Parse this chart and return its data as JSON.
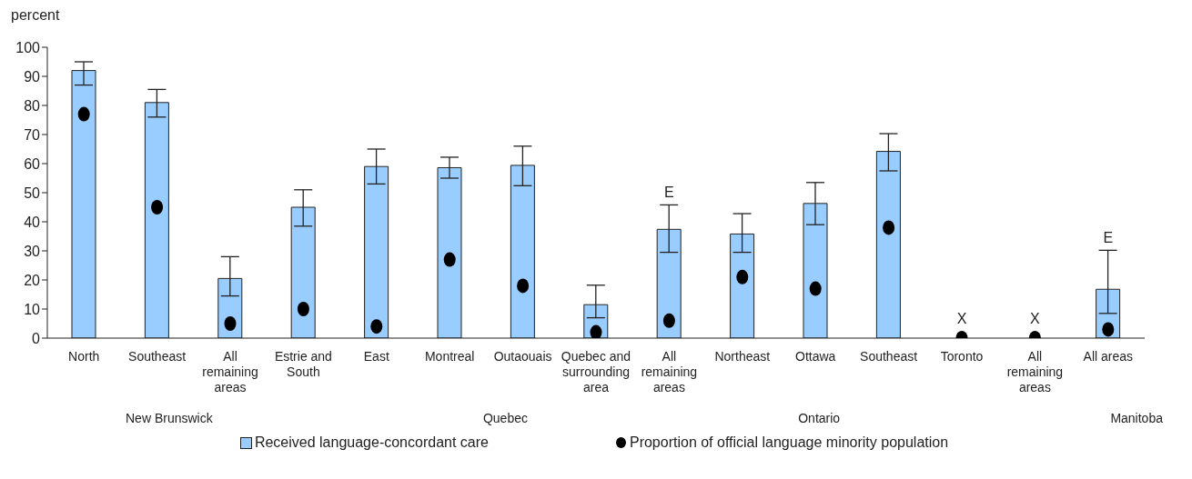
{
  "chart_data": {
    "type": "bar",
    "ylabel": "percent",
    "categories": [
      "North",
      "Southeast",
      "All remaining areas",
      "Estrie and South",
      "East",
      "Montreal",
      "Outaouais",
      "Quebec and surrounding area",
      "All remaining areas",
      "Northeast",
      "Ottawa",
      "Southeast",
      "Toronto",
      "All remaining areas",
      "All areas"
    ],
    "series": [
      {
        "name": "Received language-concordant care",
        "color": "#99ccff",
        "values": [
          92,
          81,
          20.5,
          45,
          59,
          58.6,
          59.4,
          11.5,
          37.4,
          35.8,
          46.3,
          64.2,
          null,
          null,
          16.8
        ],
        "errors": [
          [
            87,
            95
          ],
          [
            76,
            85.5
          ],
          [
            14.5,
            28
          ],
          [
            38.5,
            51
          ],
          [
            53,
            65
          ],
          [
            55,
            62.2
          ],
          [
            52.4,
            66
          ],
          [
            7,
            18.2
          ],
          [
            29.5,
            45.8
          ],
          [
            29.5,
            42.8
          ],
          [
            39,
            53.5
          ],
          [
            57.5,
            70.3
          ],
          null,
          null,
          [
            8.5,
            30.2
          ]
        ],
        "value_labels": [
          null,
          null,
          null,
          null,
          null,
          null,
          null,
          null,
          "E",
          null,
          null,
          null,
          "X",
          "X",
          "E"
        ]
      },
      {
        "name": "Proportion of official language minority population",
        "type": "scatter",
        "color": "#000000",
        "marker": "circle",
        "values": [
          77,
          45,
          5,
          10,
          4,
          27,
          18,
          2,
          6,
          21,
          17,
          38,
          0,
          0,
          3
        ]
      }
    ],
    "ylim": [
      0,
      100
    ],
    "yticks": [
      0,
      10,
      20,
      30,
      40,
      50,
      60,
      70,
      80,
      90,
      100
    ],
    "grid": false,
    "legend": "bottom",
    "annotations": [
      "New Brunswick",
      "Quebec",
      "Ontario",
      "Manitoba"
    ]
  }
}
